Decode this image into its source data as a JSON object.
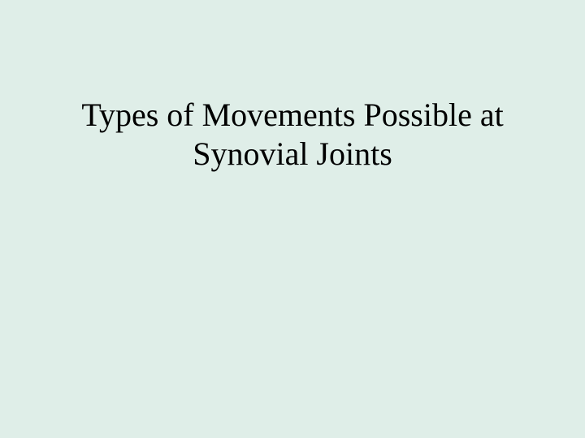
{
  "slide": {
    "title_line1": "Types of Movements Possible at",
    "title_line2": "Synovial Joints",
    "background_color": "#dfeee8",
    "text_color": "#000000",
    "font_family": "Times New Roman",
    "title_fontsize": 40
  }
}
